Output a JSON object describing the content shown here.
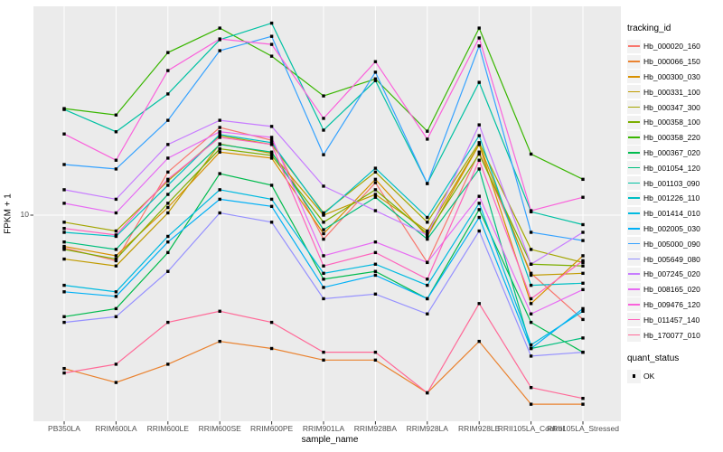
{
  "chart_data": {
    "type": "line",
    "title": "",
    "xlabel": "sample_name",
    "ylabel": "FPKM + 1",
    "y_scale": "log10",
    "y_tick_labels": [
      "10"
    ],
    "ylim_log": [
      1.6,
      62
    ],
    "grid": "major-only",
    "legend_position": "right",
    "legend_title": "tracking_id",
    "point_shape": "black-square",
    "panel_color": "#EBEBEB",
    "gridline_color": "#FFFFFF",
    "categories": [
      "PB350LA",
      "RRIM600LA",
      "RRIM600LE",
      "RRIM600SE",
      "RRIM600PE",
      "RRIM901LA",
      "RRIM928BA",
      "RRIM928LA",
      "RRIM928LE",
      "RRII105LA_Control",
      "RRII105LA_Stressed"
    ],
    "quant_legend": {
      "title": "quant_status",
      "items": [
        "OK"
      ]
    },
    "series": [
      {
        "name": "Hb_000020_160",
        "color": "#F8766D",
        "values": [
          7.5,
          6.7,
          14.6,
          21.6,
          19.3,
          8.1,
          13.3,
          6.6,
          17.4,
          6.0,
          4.0
        ]
      },
      {
        "name": "Hb_000066_150",
        "color": "#EA8331",
        "values": [
          2.6,
          2.3,
          2.7,
          3.3,
          3.1,
          2.8,
          2.8,
          2.1,
          3.3,
          1.9,
          1.9
        ]
      },
      {
        "name": "Hb_000300_030",
        "color": "#D89000",
        "values": [
          7.6,
          7.0,
          10.7,
          17.4,
          16.5,
          8.5,
          13.7,
          8.3,
          18.6,
          4.6,
          7.0
        ]
      },
      {
        "name": "Hb_000331_100",
        "color": "#C09B00",
        "values": [
          6.8,
          6.4,
          10.2,
          18.7,
          17.2,
          10.0,
          12.0,
          8.7,
          18.6,
          5.9,
          6.0
        ]
      },
      {
        "name": "Hb_000347_300",
        "color": "#A3A500",
        "values": [
          9.4,
          8.7,
          13.5,
          20.1,
          18.6,
          10.2,
          14.6,
          9.4,
          18.9,
          7.4,
          6.6
        ]
      },
      {
        "name": "Hb_000358_100",
        "color": "#7CAE00",
        "values": [
          7.4,
          6.8,
          11.1,
          17.9,
          16.9,
          9.4,
          12.5,
          8.5,
          17.1,
          6.5,
          6.4
        ]
      },
      {
        "name": "Hb_000358_220",
        "color": "#39B600",
        "values": [
          25.5,
          24.1,
          41.7,
          51.7,
          40.4,
          28.5,
          33.1,
          20.9,
          51.7,
          17.1,
          13.7
        ]
      },
      {
        "name": "Hb_000367_020",
        "color": "#00BB4E",
        "values": [
          4.1,
          4.4,
          7.2,
          14.4,
          13.0,
          5.7,
          6.1,
          4.8,
          10.5,
          3.9,
          3.0
        ]
      },
      {
        "name": "Hb_001054_120",
        "color": "#00BF7D",
        "values": [
          7.9,
          7.4,
          12.0,
          18.6,
          17.4,
          8.8,
          11.7,
          8.1,
          15.0,
          3.1,
          3.4
        ]
      },
      {
        "name": "Hb_001103_090",
        "color": "#00C1A3",
        "values": [
          25.3,
          20.8,
          29.0,
          46.7,
          54.0,
          21.1,
          32.6,
          13.2,
          32.1,
          10.3,
          9.2
        ]
      },
      {
        "name": "Hb_001226_110",
        "color": "#00BFC4",
        "values": [
          8.6,
          8.3,
          13.0,
          20.3,
          18.9,
          10.1,
          15.1,
          9.8,
          20.1,
          5.4,
          5.5
        ]
      },
      {
        "name": "Hb_001414_010",
        "color": "#00BAE0",
        "values": [
          5.4,
          5.1,
          8.3,
          12.5,
          11.5,
          6.0,
          6.5,
          5.4,
          11.1,
          3.2,
          4.3
        ]
      },
      {
        "name": "Hb_002005_030",
        "color": "#00B0F6",
        "values": [
          5.1,
          4.9,
          7.9,
          11.5,
          10.8,
          5.3,
          5.9,
          4.8,
          9.8,
          3.1,
          4.4
        ]
      },
      {
        "name": "Hb_005000_090",
        "color": "#35A2FF",
        "values": [
          15.6,
          15.0,
          23.0,
          42.4,
          48.1,
          17.0,
          35.1,
          13.2,
          44.2,
          8.6,
          8.0
        ]
      },
      {
        "name": "Hb_005649_080",
        "color": "#9590FF",
        "values": [
          3.9,
          4.1,
          6.1,
          10.2,
          9.4,
          4.8,
          5.0,
          4.2,
          8.7,
          2.9,
          3.0
        ]
      },
      {
        "name": "Hb_007245_020",
        "color": "#C77CFF",
        "values": [
          12.5,
          11.5,
          18.6,
          23.0,
          21.8,
          12.9,
          10.4,
          8.4,
          22.1,
          6.5,
          8.6
        ]
      },
      {
        "name": "Hb_008165_020",
        "color": "#E76BF3",
        "values": [
          11.1,
          10.2,
          16.5,
          20.8,
          19.8,
          7.0,
          7.9,
          6.6,
          11.8,
          4.2,
          5.2
        ]
      },
      {
        "name": "Hb_009476_120",
        "color": "#FA62DB",
        "values": [
          20.4,
          16.2,
          35.6,
          47.0,
          44.8,
          23.4,
          38.5,
          19.5,
          47.4,
          10.4,
          11.7
        ]
      },
      {
        "name": "Hb_011457_140",
        "color": "#FF62BC",
        "values": [
          8.9,
          8.4,
          13.7,
          19.8,
          18.6,
          6.4,
          7.2,
          5.7,
          16.2,
          4.8,
          6.7
        ]
      },
      {
        "name": "Hb_170077_010",
        "color": "#FF6A98",
        "values": [
          2.5,
          2.7,
          3.9,
          4.3,
          3.9,
          3.0,
          3.0,
          2.1,
          4.6,
          2.2,
          2.0
        ]
      }
    ]
  }
}
